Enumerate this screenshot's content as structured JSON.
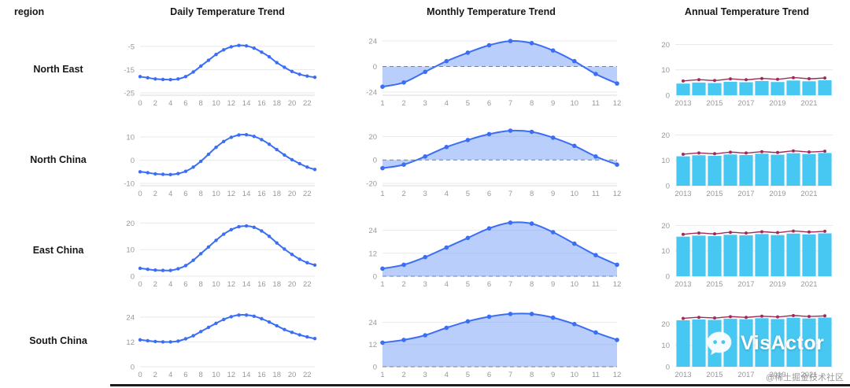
{
  "header": {
    "region_label": "region",
    "columns": [
      "Daily Temperature Trend",
      "Monthly Temperature Trend",
      "Annual Temperature Trend"
    ]
  },
  "watermark": {
    "brand": "VisActor",
    "credit": "@稀土掘金技术社区"
  },
  "colors": {
    "line": "#3b6ef5",
    "area": "rgba(99,146,243,0.45)",
    "bar": "#47c8f2",
    "annual_line": "#a02a5a",
    "grid": "#e9e9ee",
    "axis": "#d9d9de",
    "tick_text": "#97989c"
  },
  "chart_data": [
    {
      "region": "North East",
      "daily": {
        "type": "line",
        "x": [
          0,
          1,
          2,
          3,
          4,
          5,
          6,
          7,
          8,
          9,
          10,
          11,
          12,
          13,
          14,
          15,
          16,
          17,
          18,
          19,
          20,
          21,
          22,
          23
        ],
        "values": [
          -18,
          -18.5,
          -19,
          -19.2,
          -19.3,
          -19,
          -18,
          -16,
          -13.5,
          -11,
          -8.5,
          -6.5,
          -5.2,
          -4.6,
          -4.8,
          -5.8,
          -7.5,
          -9.5,
          -12,
          -14,
          -15.8,
          -17,
          -17.8,
          -18.3
        ],
        "yticks": [
          -5,
          -15,
          -25
        ],
        "ylim": [
          -26,
          -2
        ],
        "xticks_shown": [
          0,
          2,
          4,
          6,
          8,
          10,
          12,
          14,
          16,
          18,
          20,
          22
        ]
      },
      "monthly": {
        "type": "area",
        "x": [
          1,
          2,
          3,
          4,
          5,
          6,
          7,
          8,
          9,
          10,
          11,
          12
        ],
        "values": [
          -19,
          -15,
          -5,
          5,
          13,
          20,
          24,
          22,
          15,
          5,
          -7,
          -16
        ],
        "yticks": [
          24,
          0,
          -24
        ],
        "ylim": [
          -27,
          27
        ],
        "zero_dash": true
      },
      "annual": {
        "type": "bar-line",
        "x": [
          2013,
          2014,
          2015,
          2016,
          2017,
          2018,
          2019,
          2020,
          2021,
          2022
        ],
        "bars": [
          4.6,
          5,
          4.8,
          5.3,
          5.1,
          5.6,
          5.2,
          5.8,
          5.5,
          5.9
        ],
        "line": [
          5.6,
          6.1,
          5.8,
          6.4,
          6.1,
          6.6,
          6.3,
          6.9,
          6.5,
          6.8
        ],
        "yticks": [
          20,
          10,
          0
        ],
        "ylim": [
          0,
          22
        ],
        "xticks_shown": [
          2013,
          2015,
          2017,
          2019,
          2021
        ]
      }
    },
    {
      "region": "North China",
      "daily": {
        "type": "line",
        "x": [
          0,
          1,
          2,
          3,
          4,
          5,
          6,
          7,
          8,
          9,
          10,
          11,
          12,
          13,
          14,
          15,
          16,
          17,
          18,
          19,
          20,
          21,
          22,
          23
        ],
        "values": [
          -5,
          -5.4,
          -5.9,
          -6.1,
          -6.2,
          -5.8,
          -4.8,
          -3,
          -0.5,
          2.5,
          5.5,
          8,
          9.8,
          10.8,
          10.9,
          10.2,
          8.8,
          6.8,
          4.5,
          2.2,
          0.2,
          -1.5,
          -3,
          -4
        ],
        "yticks": [
          10,
          0,
          -10
        ],
        "ylim": [
          -11,
          13
        ],
        "xticks_shown": [
          0,
          2,
          4,
          6,
          8,
          10,
          12,
          14,
          16,
          18,
          20,
          22
        ]
      },
      "monthly": {
        "type": "area",
        "x": [
          1,
          2,
          3,
          4,
          5,
          6,
          7,
          8,
          9,
          10,
          11,
          12
        ],
        "values": [
          -7,
          -4,
          3,
          11,
          17,
          22,
          25,
          24,
          19,
          12,
          3,
          -4
        ],
        "yticks": [
          20,
          0,
          -20
        ],
        "ylim": [
          -22,
          27
        ],
        "zero_dash": true
      },
      "annual": {
        "type": "bar-line",
        "x": [
          2013,
          2014,
          2015,
          2016,
          2017,
          2018,
          2019,
          2020,
          2021,
          2022
        ],
        "bars": [
          11.6,
          12,
          11.8,
          12.3,
          12.1,
          12.6,
          12.2,
          12.8,
          12.5,
          12.9
        ],
        "line": [
          12.4,
          12.9,
          12.6,
          13.2,
          12.9,
          13.4,
          13.1,
          13.7,
          13.3,
          13.6
        ],
        "yticks": [
          20,
          10,
          0
        ],
        "ylim": [
          0,
          22
        ],
        "xticks_shown": [
          2013,
          2015,
          2017,
          2019,
          2021
        ]
      }
    },
    {
      "region": "East China",
      "daily": {
        "type": "line",
        "x": [
          0,
          1,
          2,
          3,
          4,
          5,
          6,
          7,
          8,
          9,
          10,
          11,
          12,
          13,
          14,
          15,
          16,
          17,
          18,
          19,
          20,
          21,
          22,
          23
        ],
        "values": [
          3,
          2.6,
          2.3,
          2.2,
          2.2,
          2.8,
          4,
          6,
          8.5,
          11,
          13.5,
          15.8,
          17.5,
          18.6,
          18.9,
          18.4,
          17,
          15,
          12.5,
          10.2,
          8.2,
          6.4,
          5.1,
          4.2
        ],
        "yticks": [
          20,
          10,
          0
        ],
        "ylim": [
          0,
          21
        ],
        "xticks_shown": [
          0,
          2,
          4,
          6,
          8,
          10,
          12,
          14,
          16,
          18,
          20,
          22
        ]
      },
      "monthly": {
        "type": "area",
        "x": [
          1,
          2,
          3,
          4,
          5,
          6,
          7,
          8,
          9,
          10,
          11,
          12
        ],
        "values": [
          4,
          6,
          10,
          15,
          20,
          25,
          28,
          27.5,
          23,
          17,
          11,
          6
        ],
        "yticks": [
          24,
          12,
          0
        ],
        "ylim": [
          0,
          30
        ],
        "zero_dash": true
      },
      "annual": {
        "type": "bar-line",
        "x": [
          2013,
          2014,
          2015,
          2016,
          2017,
          2018,
          2019,
          2020,
          2021,
          2022
        ],
        "bars": [
          15.6,
          16,
          15.8,
          16.3,
          16.1,
          16.6,
          16.2,
          16.8,
          16.5,
          16.9
        ],
        "line": [
          16.5,
          17,
          16.7,
          17.3,
          17,
          17.5,
          17.2,
          17.8,
          17.4,
          17.7
        ],
        "yticks": [
          20,
          10,
          0
        ],
        "ylim": [
          0,
          22
        ],
        "xticks_shown": [
          2013,
          2015,
          2017,
          2019,
          2021
        ]
      }
    },
    {
      "region": "South China",
      "daily": {
        "type": "line",
        "x": [
          0,
          1,
          2,
          3,
          4,
          5,
          6,
          7,
          8,
          9,
          10,
          11,
          12,
          13,
          14,
          15,
          16,
          17,
          18,
          19,
          20,
          21,
          22,
          23
        ],
        "values": [
          13,
          12.6,
          12.2,
          12,
          12,
          12.4,
          13.5,
          15,
          17,
          19,
          21,
          22.8,
          24.2,
          25,
          25,
          24.4,
          23.2,
          21.6,
          19.8,
          18,
          16.6,
          15.4,
          14.4,
          13.6
        ],
        "yticks": [
          24,
          12,
          0
        ],
        "ylim": [
          0,
          27
        ],
        "xticks_shown": [
          0,
          2,
          4,
          6,
          8,
          10,
          12,
          14,
          16,
          18,
          20,
          22
        ]
      },
      "monthly": {
        "type": "area",
        "x": [
          1,
          2,
          3,
          4,
          5,
          6,
          7,
          8,
          9,
          10,
          11,
          12
        ],
        "values": [
          13,
          14.5,
          17,
          21,
          24.5,
          27,
          28.5,
          28.5,
          26.5,
          23,
          18.5,
          14.5
        ],
        "yticks": [
          24,
          12,
          0
        ],
        "ylim": [
          0,
          31
        ],
        "zero_dash": true
      },
      "annual": {
        "type": "bar-line",
        "x": [
          2013,
          2014,
          2015,
          2016,
          2017,
          2018,
          2019,
          2020,
          2021,
          2022
        ],
        "bars": [
          21.6,
          22,
          21.8,
          22.3,
          22.1,
          22.6,
          22.2,
          22.8,
          22.5,
          22.9
        ],
        "line": [
          22.5,
          23,
          22.7,
          23.3,
          23,
          23.5,
          23.2,
          23.8,
          23.4,
          23.7
        ],
        "yticks": [
          20,
          10,
          0
        ],
        "ylim": [
          0,
          26
        ],
        "xticks_shown": [
          2013,
          2015,
          2017,
          2019,
          2021
        ]
      }
    }
  ]
}
